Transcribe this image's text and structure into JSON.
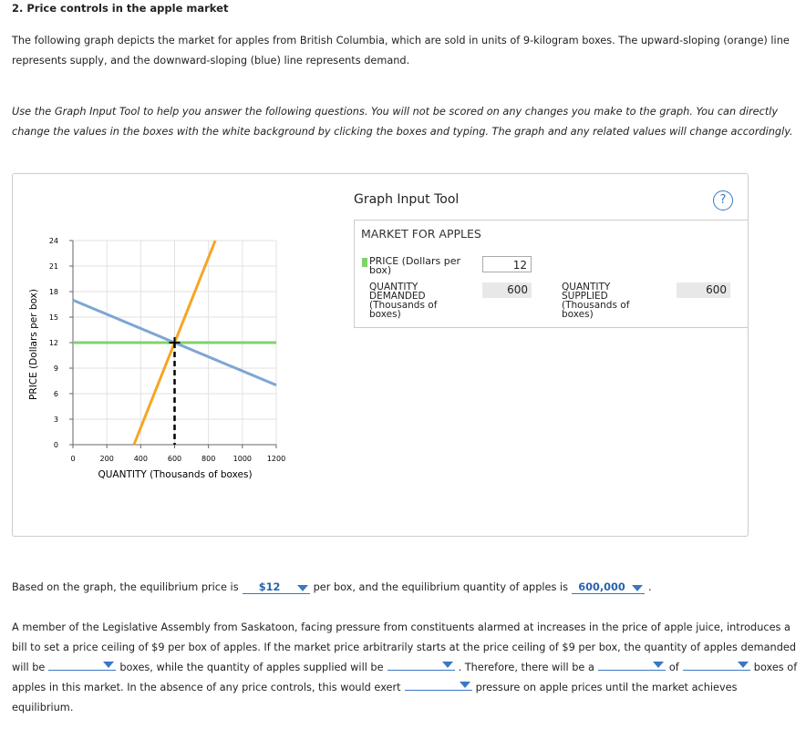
{
  "header": {
    "title": "2. Price controls in the apple market"
  },
  "intro": "The following graph depicts the market for apples from British Columbia, which are sold in units of 9-kilogram boxes. The upward-sloping (orange) line represents supply, and the downward-sloping (blue) line represents demand.",
  "instructions": "Use the Graph Input Tool to help you answer the following questions. You will not be scored on any changes you make to the graph. You can directly change the values in the boxes with the white background by clicking the boxes and typing. The graph and any related values will change accordingly.",
  "graph": {
    "x_label": "QUANTITY (Thousands of boxes)",
    "y_label": "PRICE (Dollars per box)",
    "xlim": [
      0,
      1200
    ],
    "xticks": [
      0,
      200,
      400,
      600,
      800,
      1000,
      1200
    ],
    "ylim": [
      0,
      24
    ],
    "yticks": [
      0,
      3,
      6,
      9,
      12,
      15,
      18,
      21,
      24
    ],
    "supply": {
      "color": "#f5a623",
      "x": [
        360,
        840
      ],
      "y": [
        0,
        24
      ]
    },
    "demand": {
      "color": "#7ea6d3",
      "x": [
        0,
        1200
      ],
      "y": [
        17,
        7
      ]
    },
    "price_line": {
      "color": "#7ed36b",
      "y": 12
    },
    "equilibrium": {
      "x": 600,
      "y": 12
    }
  },
  "tool": {
    "title": "Graph Input Tool",
    "help": "?",
    "market": "MARKET FOR APPLES",
    "price_label": "PRICE (Dollars per box)",
    "price": 12,
    "qd_label": "QUANTITY DEMANDED (Thousands of boxes)",
    "qd": 600,
    "qs_label": "QUANTITY SUPPLIED (Thousands of boxes)",
    "qs": 600
  },
  "question1": {
    "parts": [
      "Based on the graph, the equilibrium price is",
      "per box, and the equilibrium quantity of apples is",
      "."
    ],
    "answers": [
      "$12",
      "600,000"
    ]
  },
  "question2": {
    "parts": [
      "A member of the Legislative Assembly from Saskatoon, facing pressure from constituents alarmed at increases in the price of apple juice, introduces a bill to set a price ceiling of $9 per box of apples. If the market price arbitrarily starts at the price ceiling of $9 per box, the quantity of apples demanded will be",
      "boxes, while the quantity of apples supplied will be",
      ". Therefore, there will be a",
      "of",
      "boxes of apples in this market. In the absence of any price controls, this would exert",
      "pressure on apple prices until the market achieves equilibrium."
    ]
  }
}
